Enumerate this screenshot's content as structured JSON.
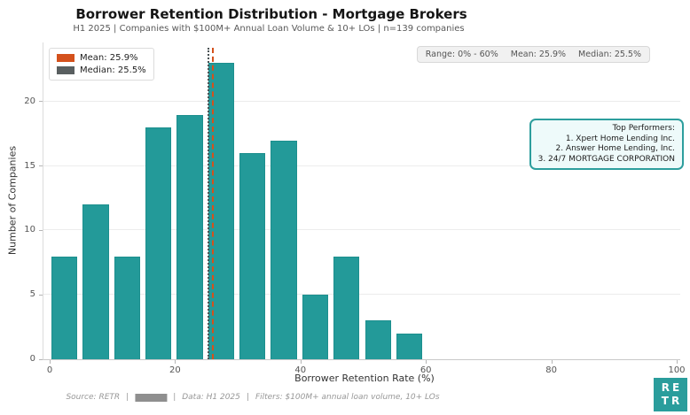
{
  "header": {
    "title": "Borrower Retention Distribution - Mortgage Brokers",
    "subtitle": "H1 2025 | Companies with $100M+ Annual Loan Volume & 10+ LOs | n=139 companies"
  },
  "legend": {
    "mean_label": "Mean: 25.9%",
    "median_label": "Median: 25.5%",
    "mean_color": "#d4511c",
    "median_color": "#595f60"
  },
  "stats_badge": {
    "range": "Range: 0% - 60%",
    "mean": "Mean: 25.9%",
    "median": "Median: 25.5%"
  },
  "top_performers": {
    "title": "Top Performers:",
    "items": [
      "1. Xpert Home Lending Inc.",
      "2. Answer Home Lending, Inc.",
      "3. 24/7 MORTGAGE CORPORATION"
    ]
  },
  "chart_data": {
    "type": "bar",
    "title": "Borrower Retention Distribution - Mortgage Brokers",
    "xlabel": "Borrower Retention Rate (%)",
    "ylabel": "Number of Companies",
    "bin_start": 0,
    "bin_width": 5,
    "bins": [
      "0-5",
      "5-10",
      "10-15",
      "15-20",
      "20-25",
      "25-30",
      "30-35",
      "35-40",
      "40-45",
      "45-50",
      "50-55",
      "55-60"
    ],
    "values": [
      8,
      12,
      8,
      18,
      19,
      23,
      16,
      17,
      5,
      8,
      3,
      2
    ],
    "n_companies": 139,
    "mean": 25.9,
    "median": 25.5,
    "x_ticks": [
      0,
      20,
      40,
      60,
      80,
      100
    ],
    "y_ticks": [
      0,
      5,
      10,
      15,
      20
    ],
    "xlim": [
      0,
      100
    ],
    "ylim": [
      0,
      24.6
    ],
    "grid": true,
    "bar_color": "#239a99",
    "bar_edge_color": "#1d8f8e",
    "mean_line_color": "#d4511c",
    "median_line_color": "#4a5254",
    "legend_position": "upper-left"
  },
  "footer": {
    "source": "Source: RETR",
    "separator": "|",
    "data": "Data: H1 2025",
    "filters": "Filters: $100M+ annual loan volume, 10+ LOs"
  },
  "logo": {
    "line1": "RE",
    "line2": "TR",
    "bg_color": "#2a9d9c"
  }
}
